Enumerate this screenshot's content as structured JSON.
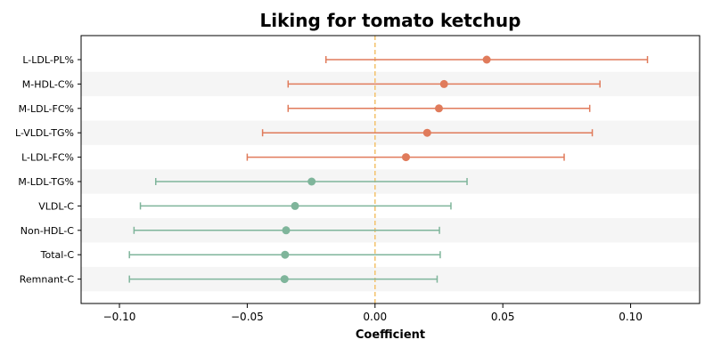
{
  "chart_data": {
    "type": "forest",
    "title": "Liking for tomato ketchup",
    "xlabel": "Coefficient",
    "ylabel": "",
    "xlim": [
      -0.115,
      0.127
    ],
    "xticks": [
      -0.1,
      -0.05,
      0.0,
      0.05,
      0.1
    ],
    "xtick_labels": [
      "−0.10",
      "−0.05",
      "0.00",
      "0.05",
      "0.10"
    ],
    "reference_line": 0.0,
    "colors": {
      "positive": "#e07b5b",
      "negative": "#7fb59b",
      "reference": "#f3c26b",
      "band": "#f5f5f5"
    },
    "rows": [
      {
        "label": "L-LDL-PL%",
        "estimate": 0.0437,
        "lower": -0.0192,
        "upper": 0.1066
      },
      {
        "label": "M-HDL-C%",
        "estimate": 0.027,
        "lower": -0.034,
        "upper": 0.088
      },
      {
        "label": "M-LDL-FC%",
        "estimate": 0.025,
        "lower": -0.034,
        "upper": 0.084
      },
      {
        "label": "L-VLDL-TG%",
        "estimate": 0.0204,
        "lower": -0.044,
        "upper": 0.085
      },
      {
        "label": "L-LDL-FC%",
        "estimate": 0.0121,
        "lower": -0.05,
        "upper": 0.074
      },
      {
        "label": "M-LDL-TG%",
        "estimate": -0.0248,
        "lower": -0.0858,
        "upper": 0.036
      },
      {
        "label": "VLDL-C",
        "estimate": -0.0313,
        "lower": -0.0918,
        "upper": 0.0297
      },
      {
        "label": "Non-HDL-C",
        "estimate": -0.0348,
        "lower": -0.0943,
        "upper": 0.0252
      },
      {
        "label": "Total-C",
        "estimate": -0.0352,
        "lower": -0.0961,
        "upper": 0.0255
      },
      {
        "label": "Remnant-C",
        "estimate": -0.0354,
        "lower": -0.0961,
        "upper": 0.0243
      }
    ]
  }
}
